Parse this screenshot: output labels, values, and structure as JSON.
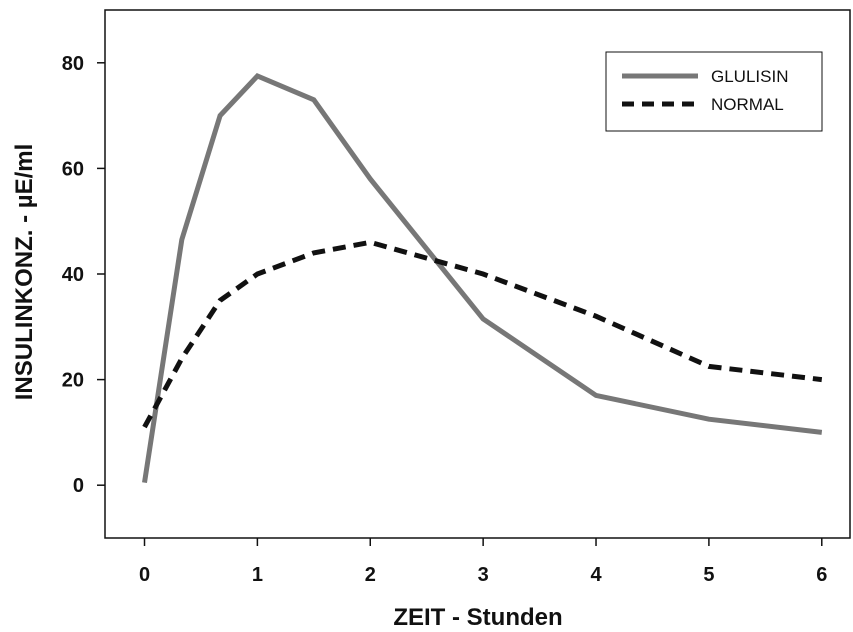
{
  "chart_data": {
    "type": "line",
    "xlabel": "ZEIT - Stunden",
    "ylabel": "INSULINKONZ. - µE/ml",
    "xlim": [
      -0.35,
      6.25
    ],
    "ylim": [
      -10,
      90
    ],
    "x_ticks": [
      "0",
      "1",
      "2",
      "3",
      "4",
      "5",
      "6"
    ],
    "y_ticks": [
      "0",
      "20",
      "40",
      "60",
      "80"
    ],
    "grid": false,
    "legend_position": "top-right",
    "series": [
      {
        "name": "GLULISIN",
        "style": "solid",
        "color": "#777777",
        "x": [
          0,
          0.33,
          0.67,
          1,
          1.5,
          2,
          3,
          4,
          5,
          6
        ],
        "y": [
          0.5,
          46.5,
          70,
          77.5,
          73,
          58,
          31.5,
          17,
          12.5,
          10
        ]
      },
      {
        "name": "NORMAL",
        "style": "dashed",
        "color": "#111111",
        "x": [
          0,
          0.33,
          0.67,
          1,
          1.5,
          2,
          3,
          4,
          5,
          6
        ],
        "y": [
          11,
          24,
          35,
          40,
          44,
          46,
          40,
          32,
          22.5,
          20
        ]
      }
    ]
  }
}
